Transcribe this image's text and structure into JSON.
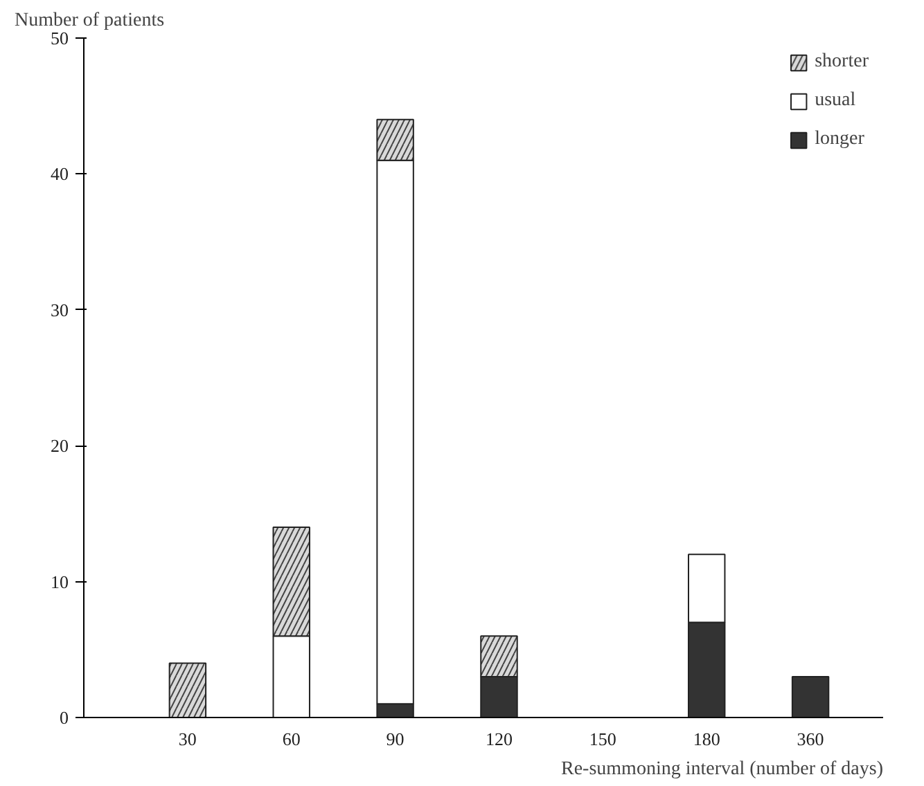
{
  "chart_data": {
    "type": "bar",
    "stacked": true,
    "ylabel": "Number of patients",
    "xlabel": "Re-summoning interval (number of days)",
    "categories": [
      "30",
      "60",
      "90",
      "120",
      "150",
      "180",
      "360"
    ],
    "series": [
      {
        "name": "longer",
        "color": "#333333",
        "values": [
          0,
          0,
          1,
          3,
          0,
          7,
          3
        ]
      },
      {
        "name": "usual",
        "color": "#ffffff",
        "values": [
          0,
          6,
          40,
          0,
          0,
          5,
          0
        ]
      },
      {
        "name": "shorter",
        "color": "#d9d9d9",
        "values": [
          4,
          8,
          3,
          3,
          0,
          0,
          0
        ]
      }
    ],
    "ylim": [
      0,
      50
    ],
    "yticks": [
      0,
      10,
      20,
      30,
      40,
      50
    ],
    "grid": false,
    "legend": "top right"
  }
}
